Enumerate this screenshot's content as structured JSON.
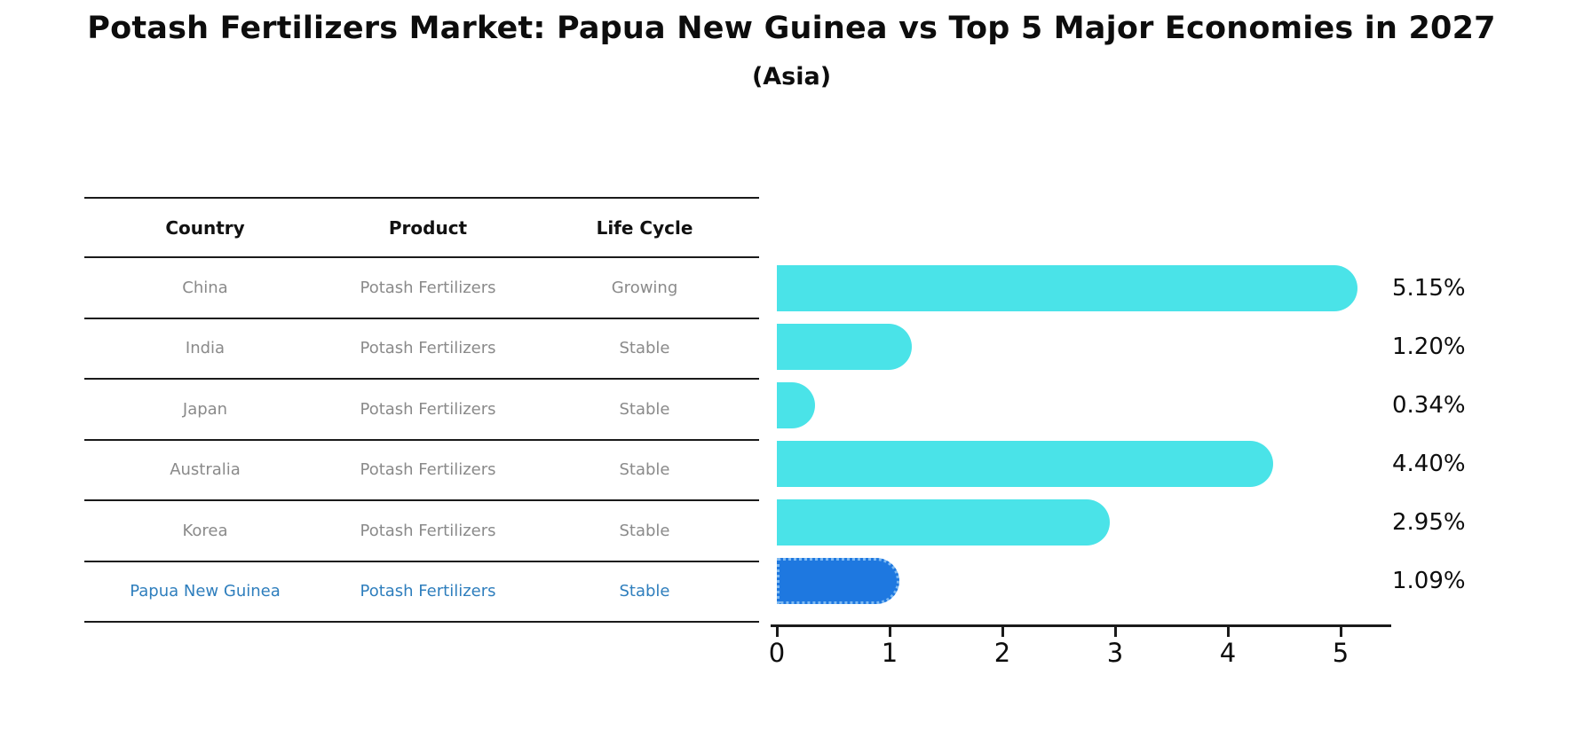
{
  "title": "Potash Fertilizers Market: Papua New Guinea vs Top 5 Major Economies in 2027",
  "subtitle": "(Asia)",
  "table": {
    "headers": [
      "Country",
      "Product",
      "Life Cycle"
    ],
    "rows": [
      {
        "country": "China",
        "product": "Potash Fertilizers",
        "life_cycle": "Growing",
        "highlighted": false
      },
      {
        "country": "India",
        "product": "Potash Fertilizers",
        "life_cycle": "Stable",
        "highlighted": false
      },
      {
        "country": "Japan",
        "product": "Potash Fertilizers",
        "life_cycle": "Stable",
        "highlighted": false
      },
      {
        "country": "Australia",
        "product": "Potash Fertilizers",
        "life_cycle": "Stable",
        "highlighted": false
      },
      {
        "country": "Korea",
        "product": "Potash Fertilizers",
        "life_cycle": "Stable",
        "highlighted": false
      },
      {
        "country": "Papua New Guinea",
        "product": "Potash Fertilizers",
        "life_cycle": "Stable",
        "highlighted": true
      }
    ]
  },
  "chart_data": {
    "type": "bar",
    "orientation": "horizontal",
    "title": "Potash Fertilizers Market: Papua New Guinea vs Top 5 Major Economies in 2027",
    "subtitle": "(Asia)",
    "categories": [
      "China",
      "India",
      "Japan",
      "Australia",
      "Korea",
      "Papua New Guinea"
    ],
    "values": [
      5.15,
      1.2,
      0.34,
      4.4,
      2.95,
      1.09
    ],
    "value_labels": [
      "5.15%",
      "1.20%",
      "0.34%",
      "4.40%",
      "2.95%",
      "1.09%"
    ],
    "x_ticks": [
      0,
      1,
      2,
      3,
      4,
      5
    ],
    "xlim": [
      0,
      5.5
    ],
    "grid": false,
    "legend": false,
    "highlight_index": 5
  },
  "colors": {
    "bar": "#4ae3e8",
    "highlight_bar": "#1e78e0",
    "highlight_border": "#7db9f2",
    "highlight_text": "#2e7ebd",
    "row_text": "#8a8a8a",
    "header_text": "#111111",
    "line": "#1a1a1a"
  }
}
